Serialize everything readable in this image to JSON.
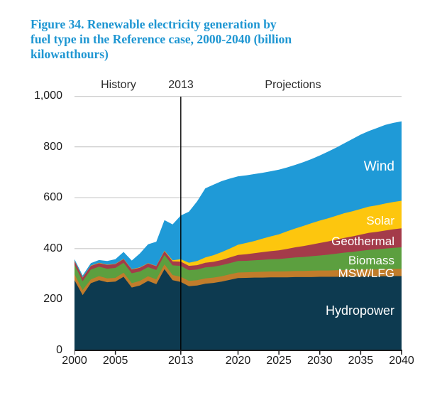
{
  "figure": {
    "title_lines": [
      "Figure 34. Renewable electricity generation by",
      "fuel type in the Reference case, 2000-2040 (billion",
      "kilowatthours)"
    ],
    "title_color": "#1e96d2"
  },
  "chart_data": {
    "type": "area",
    "stacked": true,
    "title": "Figure 34. Renewable electricity generation by fuel type in the Reference case, 2000-2040 (billion kilowatthours)",
    "units": "billion kilowatthours",
    "header_labels": [
      "History",
      "2013",
      "Projections"
    ],
    "divider_year": 2013,
    "xlim": [
      2000,
      2040
    ],
    "ylim": [
      0,
      1000
    ],
    "grid": true,
    "gridline_values": [
      200,
      400,
      600,
      800,
      1000
    ],
    "yticks": [
      "0",
      "200",
      "400",
      "600",
      "800",
      "1,000"
    ],
    "xticks": [
      2000,
      2005,
      2013,
      2020,
      2025,
      2030,
      2035,
      2040
    ],
    "legend_position": "labels-inside-right",
    "colors": {
      "gridline": "#c9c9c9",
      "axis": "#1a1a1a",
      "divider_line": "#000000",
      "label_text": "#ffffff"
    },
    "x": [
      2000,
      2001,
      2002,
      2003,
      2004,
      2005,
      2006,
      2007,
      2008,
      2009,
      2010,
      2011,
      2012,
      2013,
      2014,
      2015,
      2016,
      2017,
      2018,
      2019,
      2020,
      2021,
      2022,
      2023,
      2024,
      2025,
      2026,
      2027,
      2028,
      2029,
      2030,
      2031,
      2032,
      2033,
      2034,
      2035,
      2036,
      2037,
      2038,
      2039,
      2040
    ],
    "series": [
      {
        "name": "Hydropower",
        "color": "#0d3a50",
        "values": [
          276,
          217,
          264,
          276,
          268,
          270,
          289,
          247,
          255,
          273,
          260,
          319,
          276,
          269,
          252,
          255,
          262,
          265,
          270,
          277,
          284,
          285,
          286,
          286,
          287,
          287,
          287,
          288,
          288,
          288,
          289,
          289,
          289,
          290,
          290,
          290,
          291,
          291,
          291,
          292,
          292
        ]
      },
      {
        "name": "MSW/LFG",
        "color": "#c17c2b",
        "values": [
          23,
          20,
          15,
          16,
          15,
          15,
          16,
          17,
          18,
          18,
          19,
          19,
          20,
          20,
          21,
          21,
          21,
          21,
          21,
          22,
          22,
          22,
          22,
          23,
          23,
          23,
          24,
          24,
          24,
          25,
          25,
          25,
          26,
          26,
          26,
          27,
          27,
          27,
          28,
          28,
          28
        ]
      },
      {
        "name": "Biomass",
        "color": "#5c9f3f",
        "values": [
          38,
          35,
          39,
          37,
          38,
          39,
          39,
          39,
          37,
          36,
          37,
          37,
          38,
          43,
          42,
          42,
          43,
          43,
          44,
          44,
          45,
          45,
          46,
          47,
          48,
          49,
          51,
          53,
          55,
          57,
          59,
          62,
          65,
          68,
          71,
          74,
          77,
          79,
          81,
          83,
          85
        ]
      },
      {
        "name": "Geothermal",
        "color": "#a43b4a",
        "values": [
          14,
          14,
          14,
          14,
          15,
          15,
          15,
          15,
          15,
          15,
          15,
          15,
          16,
          17,
          17,
          17,
          18,
          19,
          20,
          22,
          24,
          26,
          28,
          30,
          32,
          34,
          37,
          40,
          43,
          46,
          49,
          52,
          55,
          58,
          61,
          64,
          67,
          69,
          71,
          73,
          75
        ]
      },
      {
        "name": "Solar",
        "color": "#fdc60e",
        "values": [
          1,
          1,
          1,
          1,
          1,
          1,
          1,
          1,
          1,
          1,
          1,
          2,
          4,
          9,
          12,
          16,
          21,
          26,
          31,
          35,
          40,
          44,
          48,
          53,
          58,
          63,
          69,
          74,
          79,
          84,
          88,
          91,
          94,
          97,
          99,
          101,
          103,
          104,
          106,
          107,
          108
        ]
      },
      {
        "name": "Wind",
        "color": "#1f9ad7",
        "values": [
          6,
          7,
          10,
          11,
          14,
          18,
          27,
          34,
          55,
          74,
          95,
          120,
          141,
          172,
          201,
          235,
          272,
          277,
          279,
          275,
          269,
          266,
          263,
          259,
          256,
          254,
          251,
          250,
          251,
          252,
          256,
          262,
          268,
          275,
          284,
          292,
          297,
          304,
          309,
          311,
          312
        ]
      }
    ]
  }
}
